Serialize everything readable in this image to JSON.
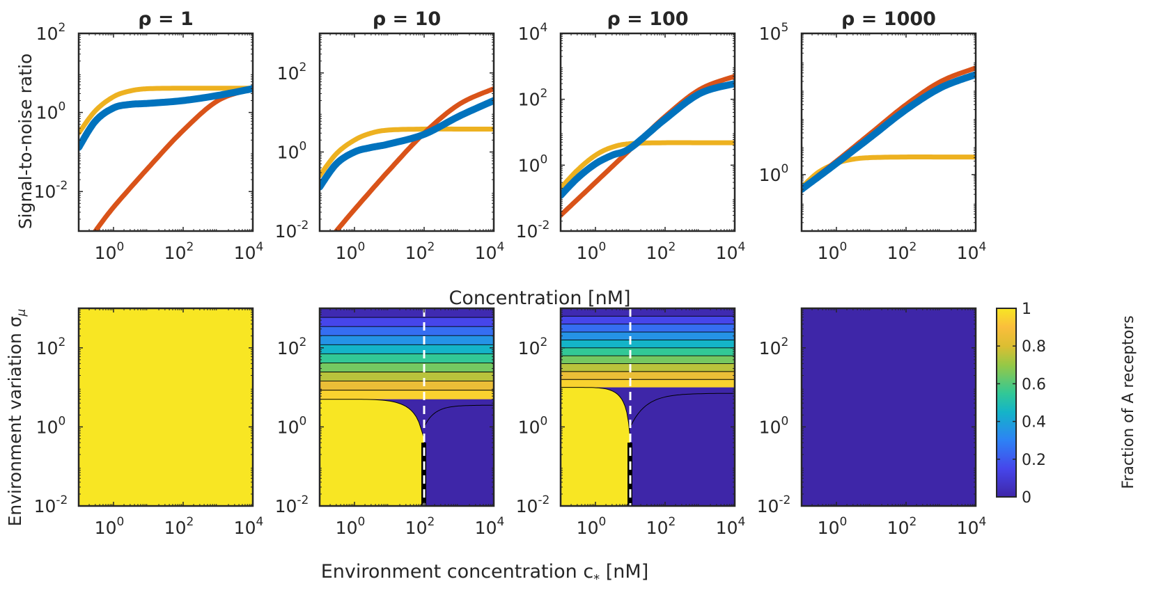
{
  "figure": {
    "top_xlabel": "Concentration [nM]",
    "top_ylabel": "Signal-to-noise ratio",
    "bottom_xlabel": "Environment concentration c",
    "bottom_xlabel_sub": "*",
    "bottom_xlabel_unit": " [nM]",
    "bottom_ylabel": "Environment variation σ",
    "bottom_ylabel_sub": "μ",
    "colorbar_label": "Fraction of A receptors",
    "colorbar_ticks": [
      "0",
      "0.2",
      "0.4",
      "0.6",
      "0.8",
      "1"
    ]
  },
  "colors": {
    "blue": "#0072BD",
    "orange": "#D95319",
    "yellow": "#EDB120",
    "axis": "#262626",
    "contour_yellow": "#F5E024",
    "contour_blue": "#3C2CAA"
  },
  "chart_data": [
    {
      "type": "line",
      "title": "ρ = 1",
      "rho": 1,
      "xscale": "log",
      "yscale": "log",
      "xlim": [
        0.1,
        10000
      ],
      "ylim": [
        0.001,
        100
      ],
      "xticks": [
        [
          "10",
          "0"
        ],
        [
          "10",
          "2"
        ],
        [
          "10",
          "4"
        ]
      ],
      "yticks": [
        [
          "10",
          "-2"
        ],
        [
          "10",
          "0"
        ],
        [
          "10",
          "2"
        ]
      ],
      "xlabel": "",
      "ylabel": "Signal-to-noise ratio",
      "series": [
        {
          "name": "yellow",
          "color": "#EDB120",
          "x": [
            0.1,
            0.3,
            1,
            3,
            10,
            100,
            1000,
            10000
          ],
          "y": [
            0.3,
            1.1,
            2.5,
            3.5,
            4,
            4.1,
            4.1,
            4.1
          ]
        },
        {
          "name": "orange",
          "color": "#D95319",
          "x": [
            0.3,
            1,
            10,
            100,
            1000,
            10000
          ],
          "y": [
            0.001,
            0.004,
            0.04,
            0.35,
            2.0,
            4.0
          ]
        },
        {
          "name": "blue",
          "color": "#0072BD",
          "x": [
            0.1,
            0.3,
            1,
            3,
            10,
            100,
            1000,
            10000
          ],
          "y": [
            0.13,
            0.6,
            1.3,
            1.6,
            1.7,
            2.0,
            2.7,
            4.0
          ]
        }
      ]
    },
    {
      "type": "line",
      "title": "ρ = 10",
      "rho": 10,
      "xscale": "log",
      "yscale": "log",
      "xlim": [
        0.1,
        10000
      ],
      "ylim": [
        0.01,
        1000
      ],
      "xticks": [
        [
          "10",
          "0"
        ],
        [
          "10",
          "2"
        ],
        [
          "10",
          "4"
        ]
      ],
      "yticks": [
        [
          "10",
          "-2"
        ],
        [
          "10",
          "0"
        ],
        [
          "10",
          "2"
        ]
      ],
      "xlabel": "",
      "ylabel": "",
      "series": [
        {
          "name": "yellow",
          "color": "#EDB120",
          "x": [
            0.1,
            0.3,
            1,
            3,
            10,
            100,
            1000,
            10000
          ],
          "y": [
            0.25,
            0.9,
            2.0,
            3.0,
            3.6,
            3.8,
            3.8,
            3.8
          ]
        },
        {
          "name": "orange",
          "color": "#D95319",
          "x": [
            0.3,
            1,
            10,
            100,
            1000,
            10000
          ],
          "y": [
            0.01,
            0.035,
            0.35,
            3.0,
            16,
            40
          ]
        },
        {
          "name": "blue",
          "color": "#0072BD",
          "x": [
            0.1,
            0.3,
            1,
            3,
            10,
            100,
            1000,
            10000
          ],
          "y": [
            0.13,
            0.5,
            1.0,
            1.3,
            1.6,
            2.8,
            8,
            20
          ]
        }
      ]
    },
    {
      "type": "line",
      "title": "ρ = 100",
      "rho": 100,
      "xscale": "log",
      "yscale": "log",
      "xlim": [
        0.1,
        10000
      ],
      "ylim": [
        0.01,
        10000
      ],
      "xticks": [
        [
          "10",
          "0"
        ],
        [
          "10",
          "2"
        ],
        [
          "10",
          "4"
        ]
      ],
      "yticks": [
        [
          "10",
          "-2"
        ],
        [
          "10",
          "0"
        ],
        [
          "10",
          "2"
        ],
        [
          "10",
          "4"
        ]
      ],
      "xlabel": "",
      "ylabel": "",
      "series": [
        {
          "name": "yellow",
          "color": "#EDB120",
          "x": [
            0.1,
            0.3,
            1,
            3,
            10,
            100,
            1000,
            10000
          ],
          "y": [
            0.2,
            0.7,
            2.0,
            3.5,
            4.5,
            4.8,
            4.8,
            4.8
          ]
        },
        {
          "name": "orange",
          "color": "#D95319",
          "x": [
            0.1,
            1,
            10,
            100,
            1000,
            10000
          ],
          "y": [
            0.03,
            0.3,
            3.0,
            30,
            200,
            500
          ]
        },
        {
          "name": "blue",
          "color": "#0072BD",
          "x": [
            0.1,
            0.3,
            1,
            3,
            10,
            100,
            1000,
            10000
          ],
          "y": [
            0.12,
            0.4,
            1.1,
            2.0,
            3.3,
            25,
            150,
            300
          ]
        }
      ]
    },
    {
      "type": "line",
      "title": "ρ = 1000",
      "rho": 1000,
      "xscale": "log",
      "yscale": "log",
      "xlim": [
        0.1,
        10000
      ],
      "ylim": [
        0.01,
        100000
      ],
      "xticks": [
        [
          "10",
          "0"
        ],
        [
          "10",
          "2"
        ],
        [
          "10",
          "4"
        ]
      ],
      "yticks": [
        [
          "10",
          "0"
        ],
        [
          "10",
          "5"
        ]
      ],
      "xlabel": "",
      "ylabel": "",
      "series": [
        {
          "name": "yellow",
          "color": "#EDB120",
          "x": [
            0.1,
            0.3,
            1,
            3,
            10,
            100,
            1000,
            10000
          ],
          "y": [
            0.35,
            1.2,
            2.5,
            3.5,
            4.0,
            4.2,
            4.2,
            4.2
          ]
        },
        {
          "name": "orange",
          "color": "#D95319",
          "x": [
            0.1,
            1,
            10,
            100,
            1000,
            10000
          ],
          "y": [
            0.32,
            3.0,
            30,
            300,
            2000,
            6000
          ]
        },
        {
          "name": "blue",
          "color": "#0072BD",
          "x": [
            0.1,
            1,
            10,
            100,
            1000,
            10000
          ],
          "y": [
            0.3,
            2.5,
            22,
            200,
            1200,
            3500
          ]
        }
      ]
    },
    {
      "type": "heatmap",
      "title": "ρ = 1",
      "xscale": "log",
      "yscale": "log",
      "xlim": [
        0.1,
        10000
      ],
      "ylim": [
        0.01,
        1000
      ],
      "xticks": [
        [
          "10",
          "0"
        ],
        [
          "10",
          "2"
        ],
        [
          "10",
          "4"
        ]
      ],
      "yticks": [
        [
          "10",
          "-2"
        ],
        [
          "10",
          "0"
        ],
        [
          "10",
          "2"
        ]
      ],
      "fraction_A": "uniform 1",
      "fill_value": 1
    },
    {
      "type": "heatmap",
      "title": "ρ = 10",
      "xscale": "log",
      "yscale": "log",
      "xlim": [
        0.1,
        10000
      ],
      "ylim": [
        0.01,
        1000
      ],
      "xticks": [
        [
          "10",
          "0"
        ],
        [
          "10",
          "2"
        ],
        [
          "10",
          "4"
        ]
      ],
      "yticks": [
        [
          "10",
          "-2"
        ],
        [
          "10",
          "0"
        ],
        [
          "10",
          "2"
        ]
      ],
      "threshold_concentration": 100,
      "contour_levels": [
        0.9,
        0.8,
        0.7,
        0.6,
        0.5,
        0.4,
        0.3,
        0.2,
        0.1
      ]
    },
    {
      "type": "heatmap",
      "title": "ρ = 100",
      "xscale": "log",
      "yscale": "log",
      "xlim": [
        0.1,
        10000
      ],
      "ylim": [
        0.01,
        1000
      ],
      "xticks": [
        [
          "10",
          "0"
        ],
        [
          "10",
          "2"
        ],
        [
          "10",
          "4"
        ]
      ],
      "yticks": [
        [
          "10",
          "-2"
        ],
        [
          "10",
          "0"
        ],
        [
          "10",
          "2"
        ]
      ],
      "threshold_concentration": 10,
      "contour_levels": [
        0.9,
        0.8,
        0.7,
        0.6,
        0.5,
        0.4,
        0.3,
        0.2,
        0.1
      ]
    },
    {
      "type": "heatmap",
      "title": "ρ = 1000",
      "xscale": "log",
      "yscale": "log",
      "xlim": [
        0.1,
        10000
      ],
      "ylim": [
        0.01,
        1000
      ],
      "xticks": [
        [
          "10",
          "0"
        ],
        [
          "10",
          "2"
        ],
        [
          "10",
          "4"
        ]
      ],
      "yticks": [
        [
          "10",
          "-2"
        ],
        [
          "10",
          "0"
        ],
        [
          "10",
          "2"
        ]
      ],
      "fraction_A": "uniform 0",
      "fill_value": 0
    }
  ]
}
